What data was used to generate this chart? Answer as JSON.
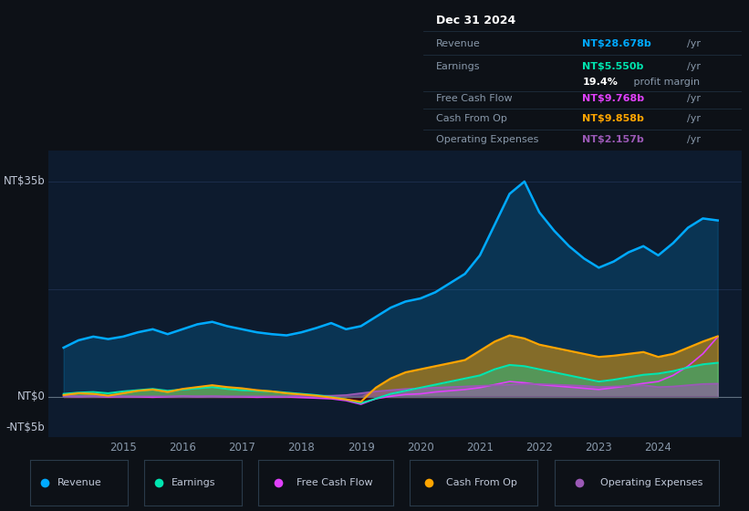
{
  "bg_color": "#0d1117",
  "plot_bg_color": "#0d1b2e",
  "text_color": "#8898aa",
  "title_color": "#ffffff",
  "ylabel_35b": "NT$35b",
  "ylabel_0": "NT$0",
  "ylabel_neg5b": "-NT$5b",
  "colors": {
    "revenue": "#00aaff",
    "earnings": "#00e5b0",
    "free_cash_flow": "#e040fb",
    "cash_from_op": "#ffa500",
    "operating_expenses": "#9b59b6"
  },
  "years": [
    2014.0,
    2014.25,
    2014.5,
    2014.75,
    2015.0,
    2015.25,
    2015.5,
    2015.75,
    2016.0,
    2016.25,
    2016.5,
    2016.75,
    2017.0,
    2017.25,
    2017.5,
    2017.75,
    2018.0,
    2018.25,
    2018.5,
    2018.75,
    2019.0,
    2019.25,
    2019.5,
    2019.75,
    2020.0,
    2020.25,
    2020.5,
    2020.75,
    2021.0,
    2021.25,
    2021.5,
    2021.75,
    2022.0,
    2022.25,
    2022.5,
    2022.75,
    2023.0,
    2023.25,
    2023.5,
    2023.75,
    2024.0,
    2024.25,
    2024.5,
    2024.75,
    2025.0
  ],
  "revenue": [
    8.0,
    9.2,
    9.8,
    9.4,
    9.8,
    10.5,
    11.0,
    10.2,
    11.0,
    11.8,
    12.2,
    11.5,
    11.0,
    10.5,
    10.2,
    10.0,
    10.5,
    11.2,
    12.0,
    11.0,
    11.5,
    13.0,
    14.5,
    15.5,
    16.0,
    17.0,
    18.5,
    20.0,
    23.0,
    28.0,
    33.0,
    35.0,
    30.0,
    27.0,
    24.5,
    22.5,
    21.0,
    22.0,
    23.5,
    24.5,
    23.0,
    25.0,
    27.5,
    29.0,
    28.678
  ],
  "earnings": [
    0.5,
    0.7,
    0.8,
    0.6,
    0.9,
    1.1,
    1.3,
    1.0,
    1.2,
    1.4,
    1.6,
    1.3,
    1.1,
    1.0,
    0.9,
    0.7,
    0.5,
    0.3,
    0.0,
    -0.4,
    -1.0,
    -0.3,
    0.5,
    1.0,
    1.5,
    2.0,
    2.5,
    3.0,
    3.5,
    4.5,
    5.2,
    5.0,
    4.5,
    4.0,
    3.5,
    3.0,
    2.5,
    2.8,
    3.2,
    3.6,
    3.8,
    4.2,
    4.8,
    5.3,
    5.55
  ],
  "free_cash_flow": [
    0.1,
    0.05,
    0.1,
    0.0,
    0.05,
    0.02,
    -0.05,
    0.03,
    0.1,
    0.05,
    0.08,
    0.03,
    0.02,
    -0.05,
    0.0,
    0.0,
    -0.1,
    -0.2,
    -0.3,
    -0.6,
    -1.2,
    -0.3,
    0.1,
    0.4,
    0.5,
    0.8,
    1.0,
    1.2,
    1.5,
    2.0,
    2.5,
    2.3,
    2.0,
    1.8,
    1.6,
    1.4,
    1.2,
    1.5,
    1.8,
    2.2,
    2.5,
    3.5,
    5.0,
    7.0,
    9.768
  ],
  "cash_from_op": [
    0.3,
    0.6,
    0.5,
    0.2,
    0.6,
    1.0,
    1.2,
    0.8,
    1.3,
    1.6,
    1.9,
    1.6,
    1.4,
    1.1,
    0.9,
    0.6,
    0.4,
    0.2,
    -0.1,
    -0.4,
    -0.8,
    1.5,
    3.0,
    4.0,
    4.5,
    5.0,
    5.5,
    6.0,
    7.5,
    9.0,
    10.0,
    9.5,
    8.5,
    8.0,
    7.5,
    7.0,
    6.5,
    6.7,
    7.0,
    7.3,
    6.5,
    7.0,
    8.0,
    9.0,
    9.858
  ],
  "operating_expenses": [
    0.1,
    0.1,
    0.1,
    0.1,
    0.1,
    0.1,
    0.1,
    0.1,
    0.1,
    0.1,
    0.1,
    0.1,
    0.1,
    0.1,
    0.1,
    0.1,
    0.2,
    0.2,
    0.2,
    0.3,
    0.6,
    0.9,
    1.1,
    1.3,
    1.4,
    1.5,
    1.6,
    1.7,
    1.8,
    1.9,
    2.0,
    2.1,
    2.1,
    2.0,
    1.9,
    1.8,
    1.6,
    1.7,
    1.8,
    1.9,
    1.6,
    1.7,
    1.9,
    2.1,
    2.157
  ],
  "xticks": [
    2015,
    2016,
    2017,
    2018,
    2019,
    2020,
    2021,
    2022,
    2023,
    2024
  ],
  "ylim": [
    -6.5,
    40
  ],
  "xlim": [
    2013.75,
    2025.4
  ],
  "info_box": {
    "date": "Dec 31 2024",
    "revenue_label": "Revenue",
    "revenue_value": "NT$28.678b",
    "revenue_unit": "/yr",
    "earnings_label": "Earnings",
    "earnings_value": "NT$5.550b",
    "earnings_unit": "/yr",
    "profit_margin": "19.4%",
    "profit_margin_text": " profit margin",
    "fcf_label": "Free Cash Flow",
    "fcf_value": "NT$9.768b",
    "fcf_unit": "/yr",
    "cfo_label": "Cash From Op",
    "cfo_value": "NT$9.858b",
    "cfo_unit": "/yr",
    "opex_label": "Operating Expenses",
    "opex_value": "NT$2.157b",
    "opex_unit": "/yr"
  },
  "legend_items": [
    {
      "label": "Revenue",
      "color": "#00aaff"
    },
    {
      "label": "Earnings",
      "color": "#00e5b0"
    },
    {
      "label": "Free Cash Flow",
      "color": "#e040fb"
    },
    {
      "label": "Cash From Op",
      "color": "#ffa500"
    },
    {
      "label": "Operating Expenses",
      "color": "#9b59b6"
    }
  ]
}
